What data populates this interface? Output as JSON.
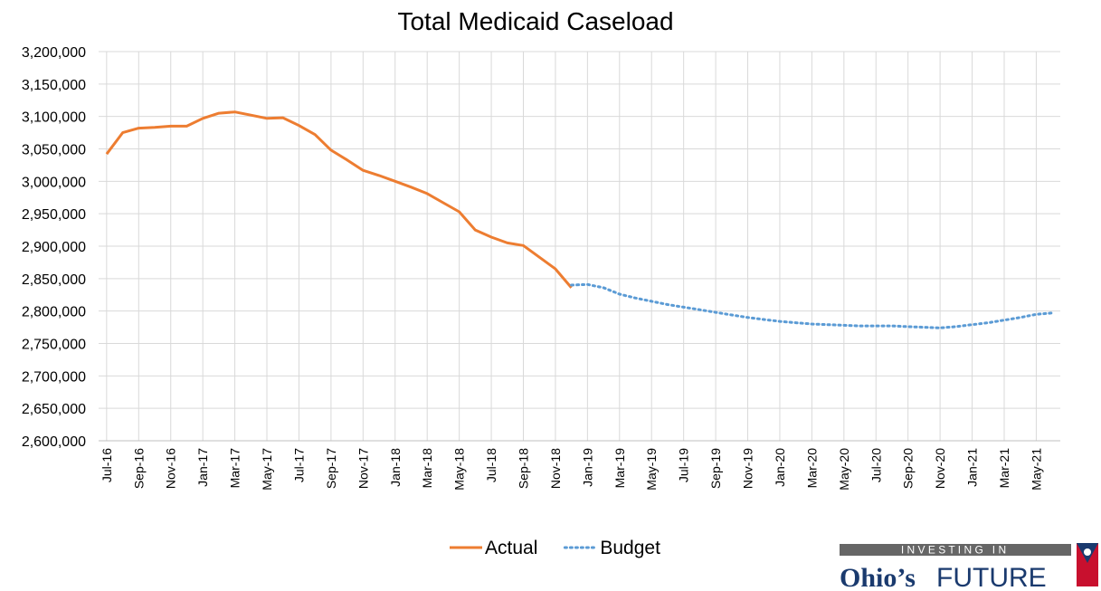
{
  "chart_data": {
    "type": "line",
    "title": "Total Medicaid Caseload",
    "categories": [
      "Jul-16",
      null,
      "Sep-16",
      null,
      "Nov-16",
      null,
      "Jan-17",
      null,
      "Mar-17",
      null,
      "May-17",
      null,
      "Jul-17",
      null,
      "Sep-17",
      null,
      "Nov-17",
      null,
      "Jan-18",
      null,
      "Mar-18",
      null,
      "May-18",
      null,
      "Jul-18",
      null,
      "Sep-18",
      null,
      "Nov-18",
      null,
      "Jan-19",
      null,
      "Mar-19",
      null,
      "May-19",
      null,
      "Jul-19",
      null,
      "Sep-19",
      null,
      "Nov-19",
      null,
      "Jan-20",
      null,
      "Mar-20",
      null,
      "May-20",
      null,
      "Jul-20",
      null,
      "Sep-20",
      null,
      "Nov-20",
      null,
      "Jan-21",
      null,
      "Mar-21",
      null,
      "May-21",
      null
    ],
    "series": [
      {
        "name": "Actual",
        "color": "#ed7d31",
        "dashed": false,
        "values": [
          3042000,
          3075000,
          3082000,
          3083000,
          3085000,
          3085000,
          3097000,
          3105000,
          3107000,
          3102000,
          3097000,
          3098000,
          3086000,
          3072000,
          3048000,
          3033000,
          3017000,
          3009000,
          3000000,
          2991000,
          2981000,
          2967000,
          2953000,
          2925000,
          2914000,
          2905000,
          2901000,
          2883000,
          2865000,
          2836000,
          null,
          null,
          null,
          null,
          null,
          null,
          null,
          null,
          null,
          null,
          null,
          null,
          null,
          null,
          null,
          null,
          null,
          null,
          null,
          null,
          null,
          null,
          null,
          null,
          null,
          null,
          null,
          null,
          null,
          null
        ]
      },
      {
        "name": "Budget",
        "color": "#5b9bd5",
        "dashed": true,
        "values": [
          null,
          null,
          null,
          null,
          null,
          null,
          null,
          null,
          null,
          null,
          null,
          null,
          null,
          null,
          null,
          null,
          null,
          null,
          null,
          null,
          null,
          null,
          null,
          null,
          null,
          null,
          null,
          null,
          null,
          2840000,
          2841000,
          2836000,
          2826000,
          2820000,
          2815000,
          2810000,
          2806000,
          2802000,
          2798000,
          2794000,
          2790000,
          2787000,
          2784000,
          2782000,
          2780000,
          2779000,
          2778000,
          2777000,
          2777000,
          2777000,
          2776000,
          2775000,
          2774000,
          2776000,
          2779000,
          2782000,
          2786000,
          2790000,
          2795000,
          2797000
        ]
      }
    ],
    "ylim": [
      2600000,
      3200000
    ],
    "yticks": [
      {
        "value": 2600000,
        "label": "2,600,000"
      },
      {
        "value": 2650000,
        "label": "2,650,000"
      },
      {
        "value": 2700000,
        "label": "2,700,000"
      },
      {
        "value": 2750000,
        "label": "2,750,000"
      },
      {
        "value": 2800000,
        "label": "2,800,000"
      },
      {
        "value": 2850000,
        "label": "2,850,000"
      },
      {
        "value": 2900000,
        "label": "2,900,000"
      },
      {
        "value": 2950000,
        "label": "2,950,000"
      },
      {
        "value": 3000000,
        "label": "3,000,000"
      },
      {
        "value": 3050000,
        "label": "3,050,000"
      },
      {
        "value": 3100000,
        "label": "3,100,000"
      },
      {
        "value": 3150000,
        "label": "3,150,000"
      },
      {
        "value": 3200000,
        "label": "3,200,000"
      }
    ],
    "grid": true,
    "legend": "bottom"
  },
  "logo": {
    "tagline": "I N V E S T I N G   I N",
    "name": "Ohio’s",
    "word": "FUTURE"
  }
}
